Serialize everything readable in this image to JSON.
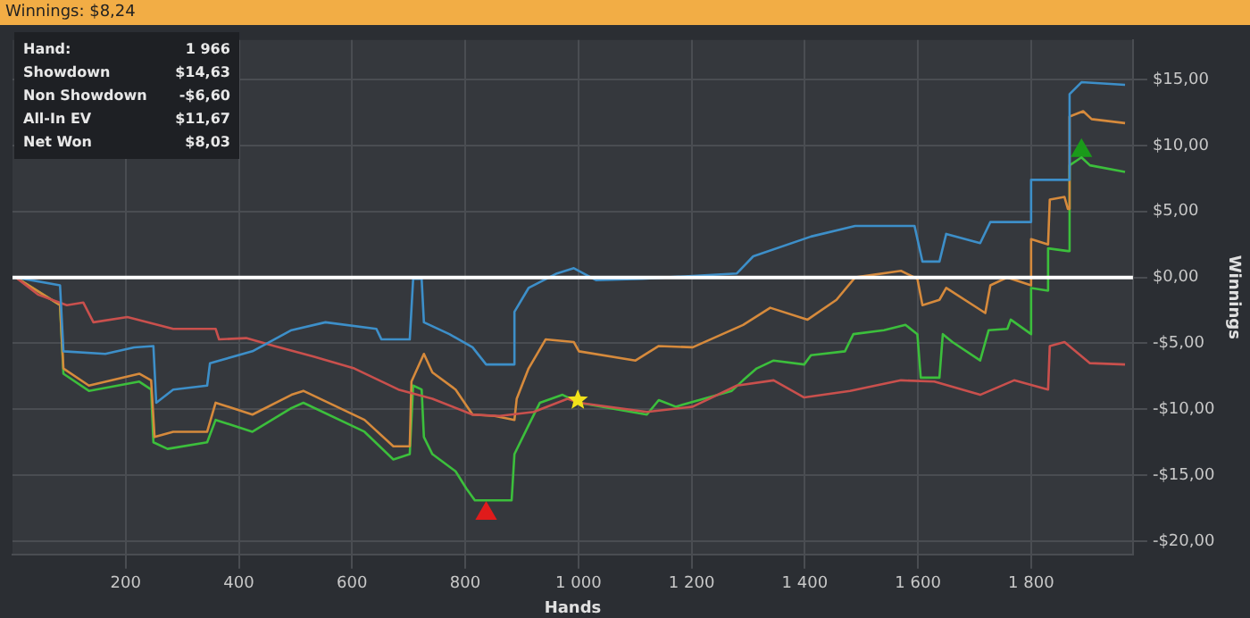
{
  "chart_data": {
    "type": "line",
    "title": "Winnings: $8,24",
    "xlabel": "Hands",
    "ylabel": "Winnings",
    "xlim": [
      0,
      1980
    ],
    "xticks": [
      {
        "value": 200,
        "label": "200"
      },
      {
        "value": 400,
        "label": "400"
      },
      {
        "value": 600,
        "label": "600"
      },
      {
        "value": 800,
        "label": "800"
      },
      {
        "value": 1000,
        "label": "1 000"
      },
      {
        "value": 1200,
        "label": "1 200"
      },
      {
        "value": 1400,
        "label": "1 400"
      },
      {
        "value": 1600,
        "label": "1 600"
      },
      {
        "value": 1800,
        "label": "1 800"
      }
    ],
    "ylim": [
      -21,
      18
    ],
    "yticks": [
      {
        "value": -20,
        "label": "-$20,00"
      },
      {
        "value": -15,
        "label": "-$15,00"
      },
      {
        "value": -10,
        "label": "-$10,00"
      },
      {
        "value": -5,
        "label": "-$5,00"
      },
      {
        "value": 0,
        "label": "$0,00"
      },
      {
        "value": 5,
        "label": "$5,00"
      },
      {
        "value": 10,
        "label": "$10,00"
      },
      {
        "value": 15,
        "label": "$15,00"
      }
    ],
    "grid": true,
    "legend": false,
    "marker": "none",
    "ref_lines": [
      {
        "axis": "y",
        "value": 0,
        "color": "#ffffff"
      }
    ],
    "annotations": [
      "Hand:",
      "1 966",
      "Showdown",
      "$14,63",
      "Non Showdown",
      "-$6,60",
      "All-In EV",
      "$11,67",
      "Net Won",
      "$8,03"
    ],
    "series": [
      {
        "color": "#3d8fc9",
        "x": [
          6,
          84,
          90,
          164,
          215,
          249,
          254,
          284,
          344,
          349,
          424,
          493,
          553,
          643,
          652,
          702,
          708,
          723,
          727,
          772,
          813,
          837,
          887,
          887,
          912,
          962,
          992,
          1031,
          1112,
          1280,
          1309,
          1411,
          1489,
          1594,
          1608,
          1638,
          1650,
          1710,
          1728,
          1788,
          1800,
          1800,
          1868,
          1868,
          1889,
          1966
        ],
        "values": [
          0,
          -0.6,
          -5.6,
          -5.8,
          -5.3,
          -5.2,
          -9.5,
          -8.5,
          -8.2,
          -6.5,
          -5.6,
          -4.0,
          -3.4,
          -3.9,
          -4.7,
          -4.7,
          -0.1,
          -0.1,
          -3.4,
          -4.3,
          -5.3,
          -6.6,
          -6.6,
          -2.6,
          -0.8,
          0.3,
          0.7,
          -0.2,
          -0.1,
          0.3,
          1.6,
          3.1,
          3.9,
          3.9,
          1.2,
          1.2,
          3.3,
          2.6,
          4.2,
          4.2,
          4.2,
          7.4,
          7.4,
          13.9,
          14.8,
          14.6
        ]
      },
      {
        "color": "#c9504d",
        "x": [
          6,
          45,
          96,
          125,
          143,
          203,
          284,
          359,
          365,
          413,
          463,
          532,
          604,
          682,
          742,
          813,
          861,
          921,
          981,
          1001,
          1121,
          1202,
          1280,
          1345,
          1399,
          1480,
          1570,
          1629,
          1710,
          1770,
          1830,
          1833,
          1859,
          1904,
          1966
        ],
        "values": [
          0,
          -1.3,
          -2.1,
          -1.9,
          -3.4,
          -3.0,
          -3.9,
          -3.9,
          -4.7,
          -4.6,
          -5.2,
          -6.0,
          -6.9,
          -8.5,
          -9.2,
          -10.4,
          -10.5,
          -10.2,
          -9.2,
          -9.5,
          -10.2,
          -9.8,
          -8.2,
          -7.8,
          -9.1,
          -8.6,
          -7.8,
          -7.9,
          -8.9,
          -7.8,
          -8.5,
          -5.2,
          -4.9,
          -6.5,
          -6.6
        ]
      },
      {
        "color": "#d68a3c",
        "x": [
          6,
          84,
          90,
          135,
          224,
          245,
          251,
          284,
          344,
          359,
          424,
          493,
          514,
          622,
          673,
          702,
          705,
          727,
          742,
          783,
          813,
          852,
          887,
          891,
          912,
          942,
          992,
          1001,
          1101,
          1142,
          1202,
          1291,
          1339,
          1405,
          1456,
          1489,
          1570,
          1599,
          1608,
          1638,
          1650,
          1719,
          1728,
          1758,
          1800,
          1800,
          1830,
          1833,
          1859,
          1865,
          1868,
          1892,
          1907,
          1966
        ],
        "values": [
          0,
          -2.1,
          -6.9,
          -8.2,
          -7.3,
          -7.8,
          -12.1,
          -11.7,
          -11.7,
          -9.5,
          -10.4,
          -8.9,
          -8.6,
          -10.8,
          -12.8,
          -12.8,
          -7.9,
          -5.8,
          -7.2,
          -8.5,
          -10.4,
          -10.5,
          -10.8,
          -9.2,
          -6.9,
          -4.7,
          -4.9,
          -5.6,
          -6.3,
          -5.2,
          -5.3,
          -3.6,
          -2.3,
          -3.2,
          -1.7,
          0,
          0.5,
          -0.1,
          -2.1,
          -1.7,
          -0.8,
          -2.7,
          -0.6,
          0,
          -0.6,
          2.9,
          2.5,
          5.9,
          6.1,
          5.2,
          12.2,
          12.6,
          12.0,
          11.7
        ]
      },
      {
        "color": "#3cbf3c",
        "x": [
          6,
          84,
          90,
          135,
          224,
          245,
          249,
          274,
          344,
          359,
          424,
          493,
          514,
          622,
          673,
          702,
          708,
          723,
          727,
          742,
          783,
          802,
          817,
          843,
          882,
          887,
          912,
          932,
          972,
          1001,
          1121,
          1142,
          1172,
          1271,
          1291,
          1315,
          1345,
          1399,
          1411,
          1471,
          1486,
          1540,
          1578,
          1599,
          1605,
          1638,
          1644,
          1661,
          1710,
          1725,
          1758,
          1764,
          1800,
          1800,
          1830,
          1830,
          1865,
          1868,
          1889,
          1904,
          1966
        ],
        "values": [
          0,
          -2.1,
          -7.3,
          -8.6,
          -7.9,
          -8.5,
          -12.5,
          -13.0,
          -12.5,
          -10.8,
          -11.7,
          -9.9,
          -9.5,
          -11.7,
          -13.8,
          -13.4,
          -8.2,
          -8.5,
          -12.1,
          -13.4,
          -14.7,
          -16.0,
          -16.9,
          -16.9,
          -16.9,
          -13.4,
          -11.2,
          -9.5,
          -8.9,
          -9.5,
          -10.4,
          -9.3,
          -9.8,
          -8.6,
          -7.8,
          -6.9,
          -6.3,
          -6.6,
          -5.9,
          -5.6,
          -4.3,
          -4.0,
          -3.6,
          -4.3,
          -7.6,
          -7.6,
          -4.3,
          -4.9,
          -6.3,
          -4.0,
          -3.9,
          -3.2,
          -4.3,
          -0.8,
          -1.0,
          2.2,
          2.0,
          8.5,
          9.1,
          8.5,
          8.0
        ]
      },
      {
        "type": "scatter",
        "marker": "triangle",
        "color": "#e01b1b",
        "x": [
          837
        ],
        "values": [
          -17.9
        ]
      },
      {
        "type": "scatter",
        "marker": "star",
        "color": "#f2e21a",
        "x": [
          999
        ],
        "values": [
          -9.3
        ]
      },
      {
        "type": "scatter",
        "marker": "triangle",
        "color": "#1a9a1a",
        "x": [
          1889
        ],
        "values": [
          9.6
        ]
      }
    ]
  }
}
